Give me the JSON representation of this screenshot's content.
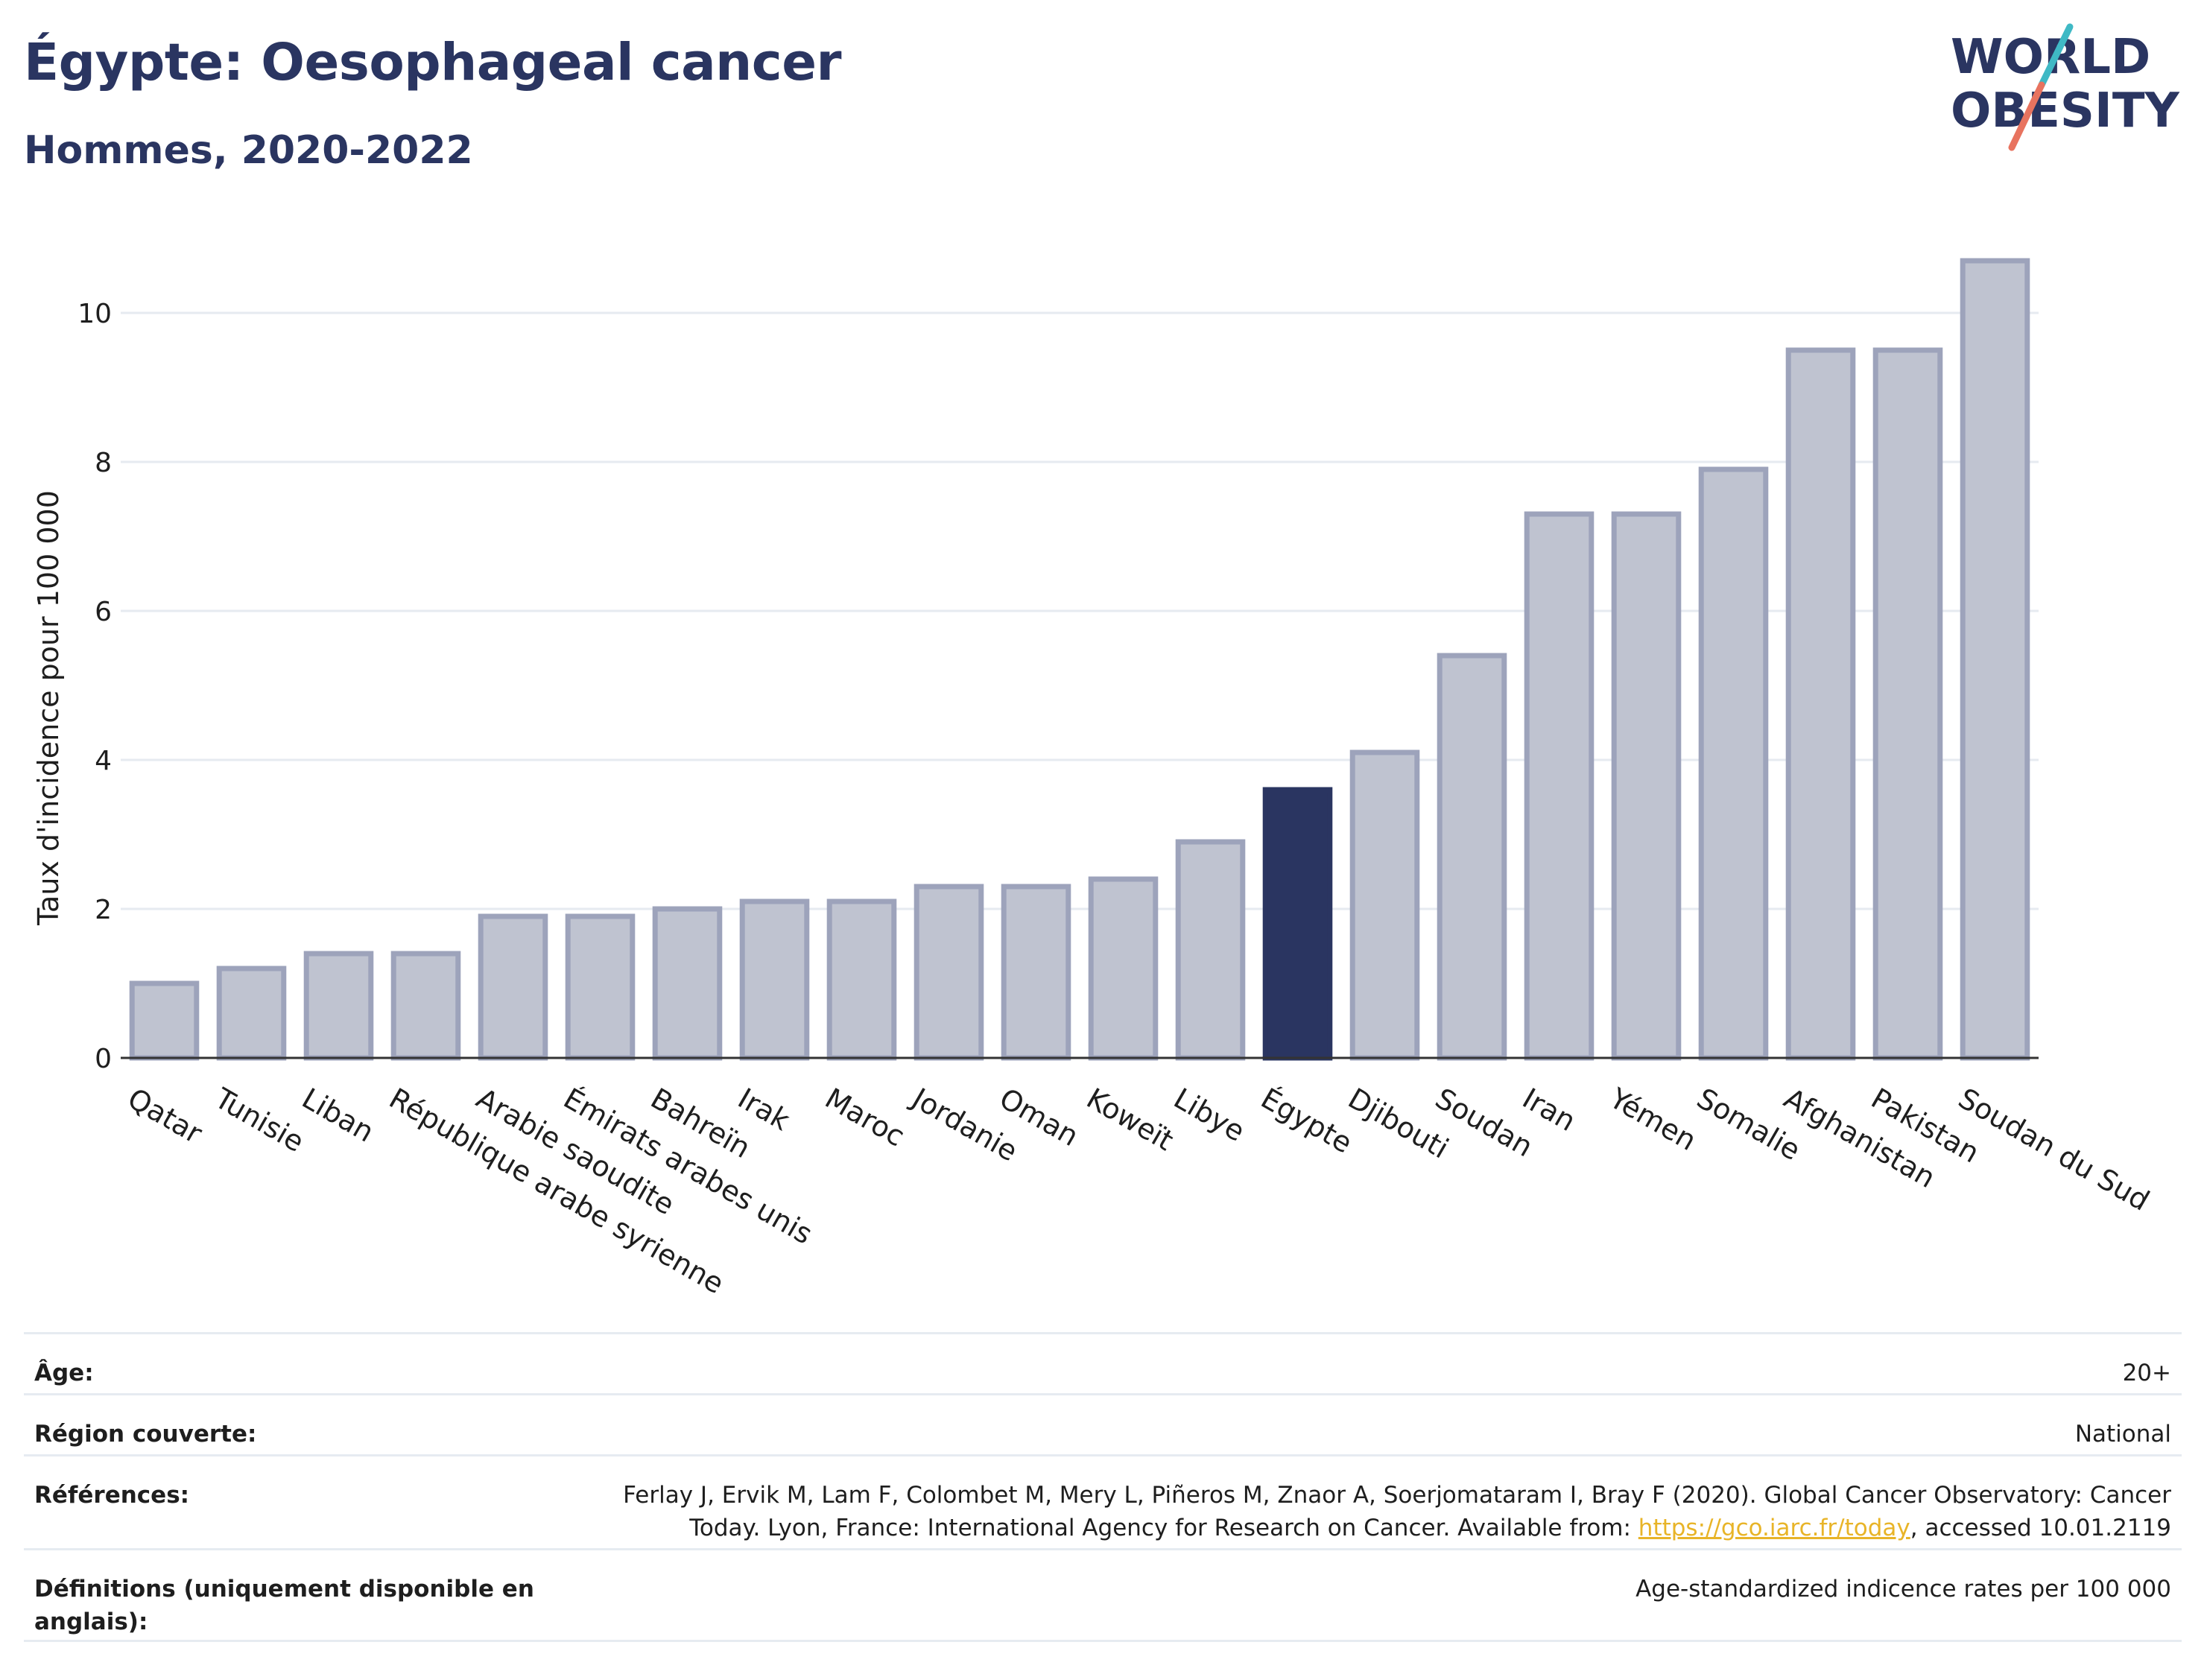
{
  "header": {
    "title": "Égypte: Oesophageal cancer",
    "subtitle": "Hommes, 2020-2022"
  },
  "logo": {
    "line1": "WORLD",
    "line2": "OBESITY"
  },
  "colors": {
    "highlight": "#2a3561",
    "bar_fill": "#bfc3d0",
    "bar_stroke": "#9da3bb",
    "logo_teal": "#3fb9c5",
    "logo_coral": "#e8735f"
  },
  "chart_data": {
    "type": "bar",
    "ylabel": "Taux d'incidence pour 100 000",
    "ylim": [
      0,
      11
    ],
    "yticks": [
      0,
      2,
      4,
      6,
      8,
      10
    ],
    "grid": true,
    "highlight": "Égypte",
    "categories": [
      "Qatar",
      "Tunisie",
      "Liban",
      "République arabe syrienne",
      "Arabie saoudite",
      "Émirats arabes unis",
      "Bahreïn",
      "Irak",
      "Maroc",
      "Jordanie",
      "Oman",
      "Koweït",
      "Libye",
      "Égypte",
      "Djibouti",
      "Soudan",
      "Iran",
      "Yémen",
      "Somalie",
      "Afghanistan",
      "Pakistan",
      "Soudan du Sud"
    ],
    "values": [
      1.0,
      1.2,
      1.4,
      1.4,
      1.9,
      1.9,
      2.0,
      2.1,
      2.1,
      2.3,
      2.3,
      2.4,
      2.9,
      3.6,
      4.1,
      5.4,
      7.3,
      7.3,
      7.9,
      9.5,
      9.5,
      10.7
    ]
  },
  "info": {
    "age_label": "Âge:",
    "age_value": "20+",
    "region_label": "Région couverte:",
    "region_value": "National",
    "references_label": "Références:",
    "references_text1": "Ferlay J, Ervik M, Lam F, Colombet M, Mery L, Piñeros M, Znaor A, Soerjomataram I, Bray F (2020). Global Cancer Observatory: Cancer Today. Lyon, France: International Agency for Research on Cancer. Available from: ",
    "references_link": "https://gco.iarc.fr/today",
    "references_text2": ", accessed 10.01.2119",
    "definitions_label": "Définitions (uniquement disponible en anglais):",
    "definitions_value": "Age-standardized indicence rates per 100 000"
  }
}
